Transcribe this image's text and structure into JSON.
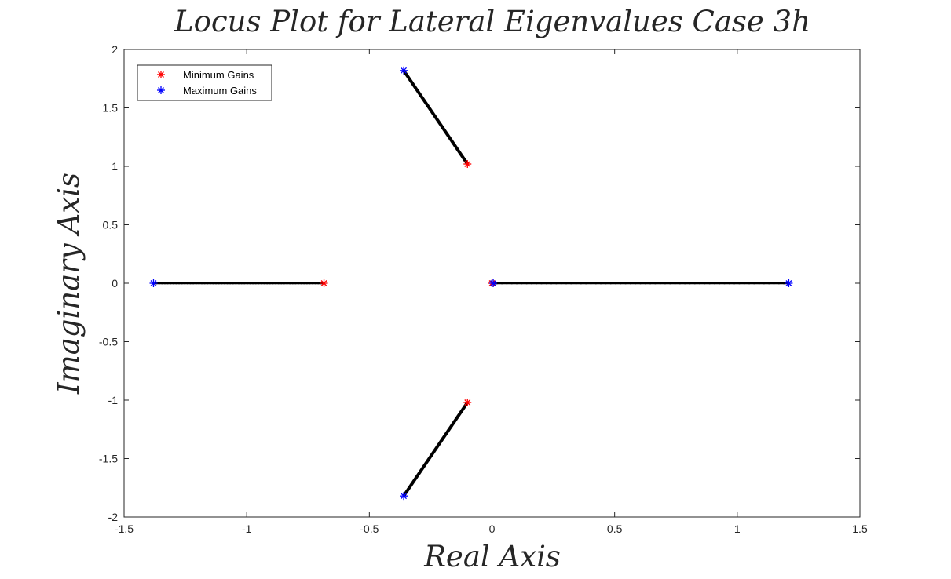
{
  "chart_data": {
    "type": "scatter",
    "title": "Locus Plot for Lateral Eigenvalues Case 3h",
    "xlabel": "Real Axis",
    "ylabel": "Imaginary Axis",
    "xlim": [
      -1.5,
      1.5
    ],
    "ylim": [
      -2,
      2
    ],
    "xticks": [
      -1.5,
      -1,
      -0.5,
      0,
      0.5,
      1,
      1.5
    ],
    "yticks": [
      -2,
      -1.5,
      -1,
      -0.5,
      0,
      0.5,
      1,
      1.5,
      2
    ],
    "grid": false,
    "legend_position": "top-left",
    "legend": [
      {
        "label": "Minimum Gains",
        "color": "#ff0000",
        "marker": "asterisk"
      },
      {
        "label": "Maximum Gains",
        "color": "#0000ff",
        "marker": "asterisk"
      }
    ],
    "locus_color": "#000000",
    "loci": [
      {
        "kind": "real",
        "start": [
          -0.685,
          0
        ],
        "end": [
          -1.38,
          0
        ]
      },
      {
        "kind": "real",
        "start": [
          0,
          0
        ],
        "end": [
          1.21,
          0
        ]
      },
      {
        "kind": "complex",
        "start": [
          -0.1,
          1.02
        ],
        "mid": [
          -0.24,
          1.45
        ],
        "end": [
          -0.36,
          1.82
        ]
      },
      {
        "kind": "complex",
        "start": [
          -0.1,
          -1.02
        ],
        "mid": [
          -0.24,
          -1.45
        ],
        "end": [
          -0.36,
          -1.82
        ]
      }
    ],
    "min_gain_points": [
      [
        -0.685,
        0
      ],
      [
        0,
        0
      ],
      [
        -0.1,
        1.02
      ],
      [
        -0.1,
        -1.02
      ]
    ],
    "max_gain_points": [
      [
        -1.38,
        0
      ],
      [
        1.21,
        0
      ],
      [
        -0.36,
        1.82
      ],
      [
        -0.36,
        -1.82
      ],
      [
        0.005,
        0
      ]
    ]
  }
}
